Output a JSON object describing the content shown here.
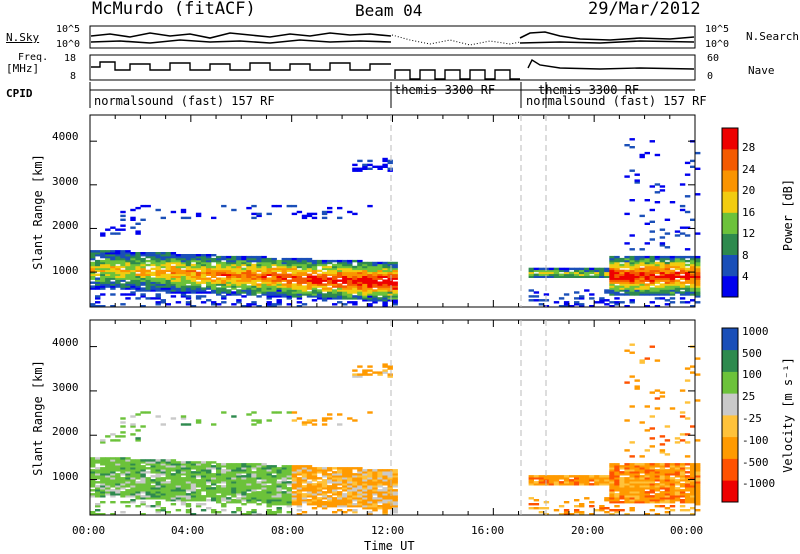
{
  "header": {
    "station": "McMurdo (fitACF)",
    "beam": "Beam 04",
    "date": "29/Mar/2012"
  },
  "side_labels": {
    "nsky": "N.Sky",
    "nsearch": "N.Search",
    "freq": "Freq.",
    "freq_unit": "[MHz]",
    "nave": "Nave",
    "cpid": "CPID"
  },
  "small_ticks": {
    "nsky_top": "10^5",
    "nsky_bottom": "10^0",
    "nsearch_top": "10^5",
    "nsearch_bottom": "10^0",
    "freq_top": "18",
    "freq_bottom": "8",
    "nave_top": "60",
    "nave_bottom": "0"
  },
  "cpid_segments": [
    {
      "label": "normalsound (fast) 157 RF",
      "start": 0,
      "end": 12
    },
    {
      "label": "themis 3300 RF",
      "start": 12,
      "end": 17.25
    },
    {
      "label": "themis 3300 RF",
      "start": 17.25,
      "end": 18
    },
    {
      "label": "normalsound (fast) 157 RF",
      "start": 18,
      "end": 24
    }
  ],
  "colors": {
    "power": [
      "#0000ee",
      "#1a4fb8",
      "#2e8a4e",
      "#6cc23a",
      "#f2cc10",
      "#fa9400",
      "#f45a00",
      "#ee0000"
    ],
    "velocity": [
      "#ee0000",
      "#ff5200",
      "#ff9a00",
      "#ffc23a",
      "#c9c9c9",
      "#6cc23a",
      "#2e8a4e",
      "#1a4fb8"
    ]
  },
  "chart_data": [
    {
      "type": "heatmap",
      "quantity": "power",
      "xlabel": "",
      "ylabel": "Slant Range [km]",
      "xlim": [
        0,
        24
      ],
      "ylim": [
        200,
        4600
      ],
      "yticks": [
        1000,
        2000,
        3000,
        4000
      ],
      "colorbar_label": "Power [dB]",
      "colorbar_ticks": [
        "4",
        "8",
        "12",
        "16",
        "20",
        "24",
        "28"
      ],
      "colorbar_range": [
        0,
        32
      ]
    },
    {
      "type": "heatmap",
      "quantity": "velocity",
      "xlabel": "Time UT",
      "ylabel": "Slant Range [km]",
      "xlim": [
        0,
        24
      ],
      "ylim": [
        200,
        4600
      ],
      "xticks": [
        "00:00",
        "04:00",
        "08:00",
        "12:00",
        "16:00",
        "20:00",
        "00:00"
      ],
      "yticks": [
        1000,
        2000,
        3000,
        4000
      ],
      "colorbar_label": "Velocity [m s⁻¹]",
      "colorbar_ticks": [
        "-1000",
        "-500",
        "-100",
        "-25",
        "25",
        "100",
        "500",
        "1000"
      ]
    }
  ]
}
